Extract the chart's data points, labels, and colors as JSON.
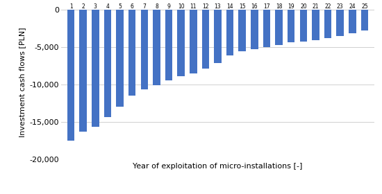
{
  "years": [
    1,
    2,
    3,
    4,
    5,
    6,
    7,
    8,
    9,
    10,
    11,
    12,
    13,
    14,
    15,
    16,
    17,
    18,
    19,
    20,
    21,
    22,
    23,
    24,
    25
  ],
  "values": [
    -17500,
    -16300,
    -15700,
    -14400,
    -13000,
    -11500,
    -10700,
    -10100,
    -9500,
    -8900,
    -8500,
    -7900,
    -7200,
    -6100,
    -5600,
    -5300,
    -5000,
    -4700,
    -4400,
    -4300,
    -4100,
    -3800,
    -3500,
    -3200,
    -2800
  ],
  "bar_color": "#4472C4",
  "ylabel": "Investment cash flows [PLN]",
  "xlabel": "Year of exploitation of micro-installations [-]",
  "ylim": [
    -20000,
    500
  ],
  "yticks": [
    0,
    -5000,
    -10000,
    -15000,
    -20000
  ],
  "ytick_labels": [
    "0",
    "-5,000",
    "-10,000",
    "-15,000",
    "-20,000"
  ],
  "background_color": "#ffffff",
  "grid_color": "#d0d0d0",
  "bar_width": 0.6,
  "label_fontsize": 5.5,
  "axis_fontsize": 8,
  "ylabel_fontsize": 8
}
